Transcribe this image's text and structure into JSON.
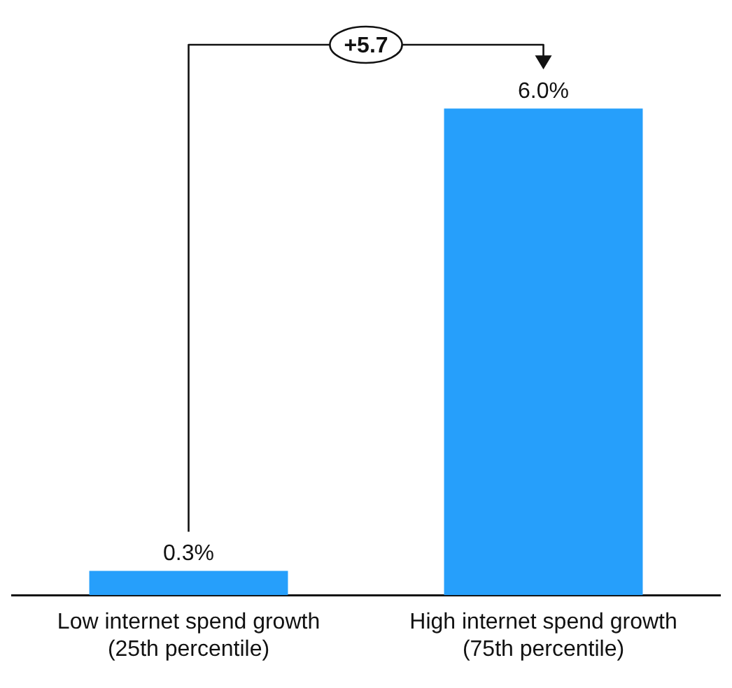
{
  "chart_data": {
    "type": "bar",
    "categories": [
      "Low internet spend growth\n(25th percentile)",
      "High internet spend growth\n(75th percentile)"
    ],
    "values": [
      0.3,
      6.0
    ],
    "value_labels": [
      "0.3%",
      "6.0%"
    ],
    "color": "#269ffb",
    "annotations": [
      "+5.7"
    ],
    "grid": false,
    "legend": false
  }
}
